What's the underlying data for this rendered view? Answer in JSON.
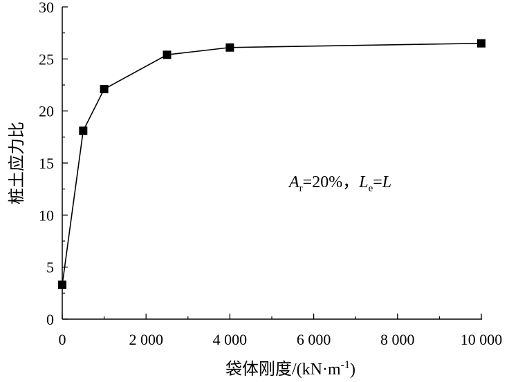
{
  "chart_data": {
    "type": "line",
    "xlabel": "袋体刚度/(kN·m",
    "xlabel_sup": "-1",
    "xlabel_close": ")",
    "ylabel": "桩土应力比",
    "xlim": [
      0,
      10000
    ],
    "ylim": [
      0,
      30
    ],
    "xticks": [
      0,
      2000,
      4000,
      6000,
      8000,
      10000
    ],
    "xtick_labels": [
      "0",
      "2 000",
      "4 000",
      "6 000",
      "8 000",
      "10 000"
    ],
    "yticks": [
      0,
      5,
      10,
      15,
      20,
      25,
      30
    ],
    "ytick_labels": [
      "0",
      "5",
      "10",
      "15",
      "20",
      "25",
      "30"
    ],
    "grid": false,
    "x": [
      0,
      500,
      1000,
      2500,
      4000,
      10000
    ],
    "series": [
      {
        "values": [
          3.3,
          18.1,
          22.1,
          25.4,
          26.1,
          26.5
        ],
        "marker": "square",
        "color": "#000000"
      }
    ],
    "annotation": {
      "a": "A",
      "a_sub": "r",
      "mid": "=20%，",
      "l": "L",
      "l_sub": "e",
      "eq": "=",
      "l2": "L"
    }
  }
}
